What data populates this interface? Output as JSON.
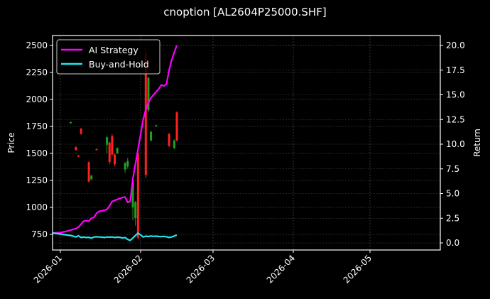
{
  "chart_data": {
    "type": "candlestick+line",
    "title": "cnoption [AL2604P25000.SHF]",
    "xlabel": "",
    "ylabel": "Price",
    "y2label": "Return",
    "ylim": [
      620,
      2590
    ],
    "y2lim": [
      -0.6,
      20.8
    ],
    "yticks": [
      750,
      1000,
      1250,
      1500,
      1750,
      2000,
      2250,
      2500
    ],
    "y2ticks": [
      "0.0",
      "2.5",
      "5.0",
      "7.5",
      "10.0",
      "12.5",
      "15.0",
      "17.5",
      "20.0"
    ],
    "xticks": [
      "2026-01",
      "2026-02",
      "2026-03",
      "2026-04",
      "2026-05"
    ],
    "grid": true,
    "legend_position": "upper left",
    "legend": [
      {
        "label": "AI Strategy",
        "color": "#ff00ff"
      },
      {
        "label": "Buy-and-Hold",
        "color": "#22e5f0"
      }
    ],
    "candles": [
      {
        "day": 4,
        "open": 1780,
        "close": 1790,
        "high": 1795,
        "low": 1775
      },
      {
        "day": 6,
        "open": 1560,
        "close": 1530,
        "high": 1565,
        "low": 1525
      },
      {
        "day": 7,
        "open": 1480,
        "close": 1470,
        "high": 1485,
        "low": 1465
      },
      {
        "day": 8,
        "open": 1730,
        "close": 1680,
        "high": 1735,
        "low": 1675
      },
      {
        "day": 11,
        "open": 1420,
        "close": 1240,
        "high": 1425,
        "low": 1230
      },
      {
        "day": 12,
        "open": 1260,
        "close": 1295,
        "high": 1300,
        "low": 1255
      },
      {
        "day": 14,
        "open": 1540,
        "close": 1535,
        "high": 1545,
        "low": 1530
      },
      {
        "day": 18,
        "open": 1580,
        "close": 1650,
        "high": 1660,
        "low": 1500
      },
      {
        "day": 19,
        "open": 1600,
        "close": 1420,
        "high": 1610,
        "low": 1400
      },
      {
        "day": 20,
        "open": 1660,
        "close": 1490,
        "high": 1680,
        "low": 1480
      },
      {
        "day": 21,
        "open": 1490,
        "close": 1400,
        "high": 1500,
        "low": 1380
      },
      {
        "day": 22,
        "open": 1500,
        "close": 1550,
        "high": 1555,
        "low": 1495
      },
      {
        "day": 25,
        "open": 1350,
        "close": 1410,
        "high": 1420,
        "low": 1320
      },
      {
        "day": 26,
        "open": 1380,
        "close": 1430,
        "high": 1460,
        "low": 1360
      },
      {
        "day": 28,
        "open": 1000,
        "close": 1250,
        "high": 1260,
        "low": 880
      },
      {
        "day": 29,
        "open": 900,
        "close": 1050,
        "high": 1060,
        "low": 830
      },
      {
        "day": 30,
        "open": 1500,
        "close": 720,
        "high": 1510,
        "low": 700
      },
      {
        "day": 33,
        "open": 2420,
        "close": 1300,
        "high": 2480,
        "low": 1270
      },
      {
        "day": 34,
        "open": 1900,
        "close": 2200,
        "high": 2210,
        "low": 1880
      },
      {
        "day": 35,
        "open": 1620,
        "close": 1700,
        "high": 1710,
        "low": 1610
      },
      {
        "day": 37,
        "open": 1750,
        "close": 1760,
        "high": 1765,
        "low": 1745
      },
      {
        "day": 42,
        "open": 1680,
        "close": 1570,
        "high": 1690,
        "low": 1560
      },
      {
        "day": 44,
        "open": 1550,
        "close": 1620,
        "high": 1630,
        "low": 1540
      },
      {
        "day": 45,
        "open": 1880,
        "close": 1620,
        "high": 1890,
        "low": 1610
      }
    ],
    "series": [
      {
        "name": "AI Strategy",
        "axis": "right",
        "color": "#ff00ff",
        "x_days": [
          -3,
          0,
          2,
          4,
          6,
          7,
          8,
          9,
          10,
          11,
          12,
          13,
          14,
          15,
          16,
          17,
          18,
          19,
          20,
          21,
          22,
          23,
          24,
          25,
          26,
          27,
          28,
          29,
          30,
          31,
          32,
          33,
          34,
          35,
          36,
          37,
          38,
          39,
          40,
          41,
          42,
          43,
          44,
          45
        ],
        "values": [
          1.0,
          1.05,
          1.15,
          1.3,
          1.45,
          1.6,
          1.9,
          2.2,
          2.25,
          2.2,
          2.5,
          2.6,
          3.0,
          3.2,
          3.25,
          3.3,
          3.4,
          3.75,
          4.2,
          4.3,
          4.4,
          4.5,
          4.6,
          4.65,
          4.1,
          4.2,
          6.5,
          8.0,
          9.5,
          11.0,
          12.5,
          13.5,
          14.2,
          14.7,
          15.0,
          15.3,
          15.6,
          16.0,
          15.9,
          16.1,
          17.5,
          18.5,
          19.3,
          20.0
        ]
      },
      {
        "name": "Buy-and-Hold",
        "axis": "right",
        "color": "#22e5f0",
        "x_days": [
          -3,
          0,
          2,
          4,
          6,
          7,
          8,
          9,
          10,
          11,
          12,
          13,
          14,
          15,
          16,
          17,
          18,
          19,
          20,
          21,
          22,
          23,
          24,
          25,
          26,
          27,
          28,
          29,
          30,
          31,
          32,
          33,
          34,
          35,
          36,
          37,
          38,
          39,
          40,
          41,
          42,
          43,
          44,
          45
        ],
        "values": [
          1.0,
          0.9,
          0.82,
          0.75,
          0.6,
          0.72,
          0.55,
          0.58,
          0.55,
          0.57,
          0.48,
          0.6,
          0.62,
          0.6,
          0.58,
          0.55,
          0.6,
          0.58,
          0.6,
          0.55,
          0.58,
          0.56,
          0.5,
          0.55,
          0.35,
          0.25,
          0.5,
          0.75,
          1.0,
          0.8,
          0.6,
          0.68,
          0.65,
          0.7,
          0.66,
          0.68,
          0.65,
          0.63,
          0.66,
          0.62,
          0.55,
          0.6,
          0.7,
          0.8
        ]
      }
    ]
  },
  "page": {
    "title": "cnoption [AL2604P25000.SHF]"
  }
}
